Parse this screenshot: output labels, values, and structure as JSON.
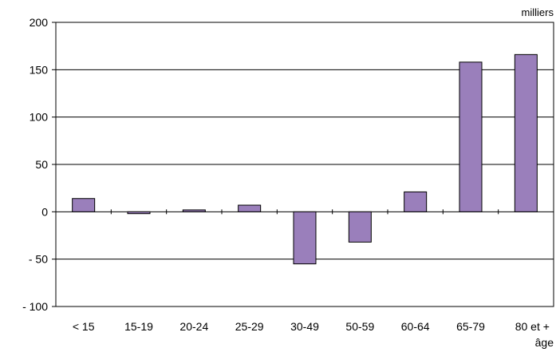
{
  "chart_data": {
    "type": "bar",
    "categories": [
      "< 15",
      "15-19",
      "20-24",
      "25-29",
      "30-49",
      "50-59",
      "60-64",
      "65-79",
      "80 et +"
    ],
    "values": [
      14,
      -2,
      2,
      7,
      -55,
      -32,
      21,
      158,
      166
    ],
    "ylim": [
      -100,
      200
    ],
    "yticks": [
      200,
      150,
      100,
      50,
      0,
      -50,
      -100
    ],
    "ytick_labels": [
      "200",
      "150",
      "100",
      "50",
      "0",
      "- 50",
      "- 100"
    ],
    "ylabel": "milliers",
    "xlabel": "âge",
    "grid": true,
    "bar_color": "#9a7fbb",
    "bar_edge_color": "#000000"
  }
}
